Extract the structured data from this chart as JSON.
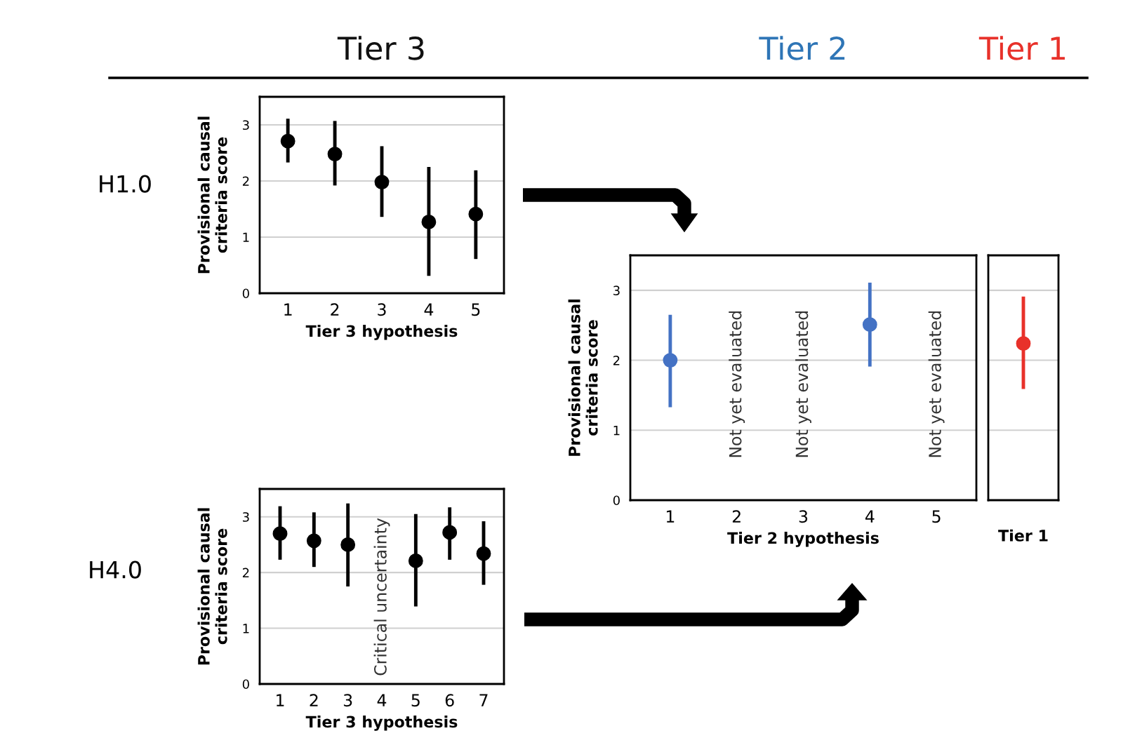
{
  "chart_data": [
    {
      "type": "scatter",
      "title": "Tier 3",
      "xlabel": "Tier 3 hypothesis",
      "ylabel": "Provisional causal\ncriteria score",
      "categories": [
        "1",
        "2",
        "3",
        "4",
        "5"
      ],
      "series": [
        {
          "color": "#000000",
          "values": [
            2.71,
            2.48,
            1.98,
            1.27,
            1.41
          ],
          "errors": [
            [
              2.33,
              3.11
            ],
            [
              1.92,
              3.07
            ],
            [
              1.36,
              2.62
            ],
            [
              0.31,
              2.25
            ],
            [
              0.61,
              2.19
            ]
          ]
        }
      ],
      "ylim": [
        0,
        3.5
      ],
      "yticks": [
        0,
        1,
        2,
        3
      ],
      "grid": "y",
      "marker": "circle",
      "annotations": [
        "H1.0"
      ]
    },
    {
      "type": "scatter",
      "xlabel": "Tier 3 hypothesis",
      "ylabel": "Provisional causal\ncriteria score",
      "categories": [
        "1",
        "2",
        "3",
        "4",
        "5",
        "6",
        "7"
      ],
      "series": [
        {
          "color": "#000000",
          "values": [
            2.7,
            2.57,
            2.5,
            null,
            2.21,
            2.72,
            2.34
          ],
          "errors": [
            [
              2.23,
              3.19
            ],
            [
              2.1,
              3.08
            ],
            [
              1.75,
              3.24
            ],
            null,
            [
              1.39,
              3.05
            ],
            [
              2.23,
              3.17
            ],
            [
              1.78,
              2.92
            ]
          ]
        }
      ],
      "ylim": [
        0,
        3.5
      ],
      "yticks": [
        0,
        1,
        2,
        3
      ],
      "grid": "y",
      "marker": "circle",
      "annotations": [
        "H4.0",
        "Critical uncertainty"
      ]
    },
    {
      "type": "scatter",
      "title": "Tier 2",
      "xlabel": "Tier 2 hypothesis",
      "ylabel": "Provisional causal\ncriteria score",
      "categories": [
        "1",
        "2",
        "3",
        "4",
        "5"
      ],
      "series": [
        {
          "color": "#4472c4",
          "values": [
            2.0,
            null,
            null,
            2.51,
            null
          ],
          "errors": [
            [
              1.33,
              2.65
            ],
            null,
            null,
            [
              1.91,
              3.11
            ],
            null
          ]
        }
      ],
      "ylim": [
        0,
        3.5
      ],
      "yticks": [
        0,
        1,
        2,
        3
      ],
      "grid": "y",
      "marker": "circle",
      "annotations": [
        "Not yet evaluated",
        "Not yet evaluated",
        "Not yet evaluated"
      ]
    },
    {
      "type": "scatter",
      "title": "Tier 1",
      "categories": [
        "Tier 1"
      ],
      "series": [
        {
          "color": "#e8312a",
          "values": [
            2.24
          ],
          "errors": [
            [
              1.59,
              2.91
            ]
          ]
        }
      ],
      "ylim": [
        0,
        3.5
      ],
      "yticks": [
        {
          "value": 0,
          "label": null
        },
        {
          "value": 1,
          "label": null
        },
        {
          "value": 2,
          "label": null
        },
        {
          "value": 3,
          "label": null
        }
      ],
      "grid": "y",
      "marker": "circle",
      "tick_labels": "x"
    }
  ]
}
